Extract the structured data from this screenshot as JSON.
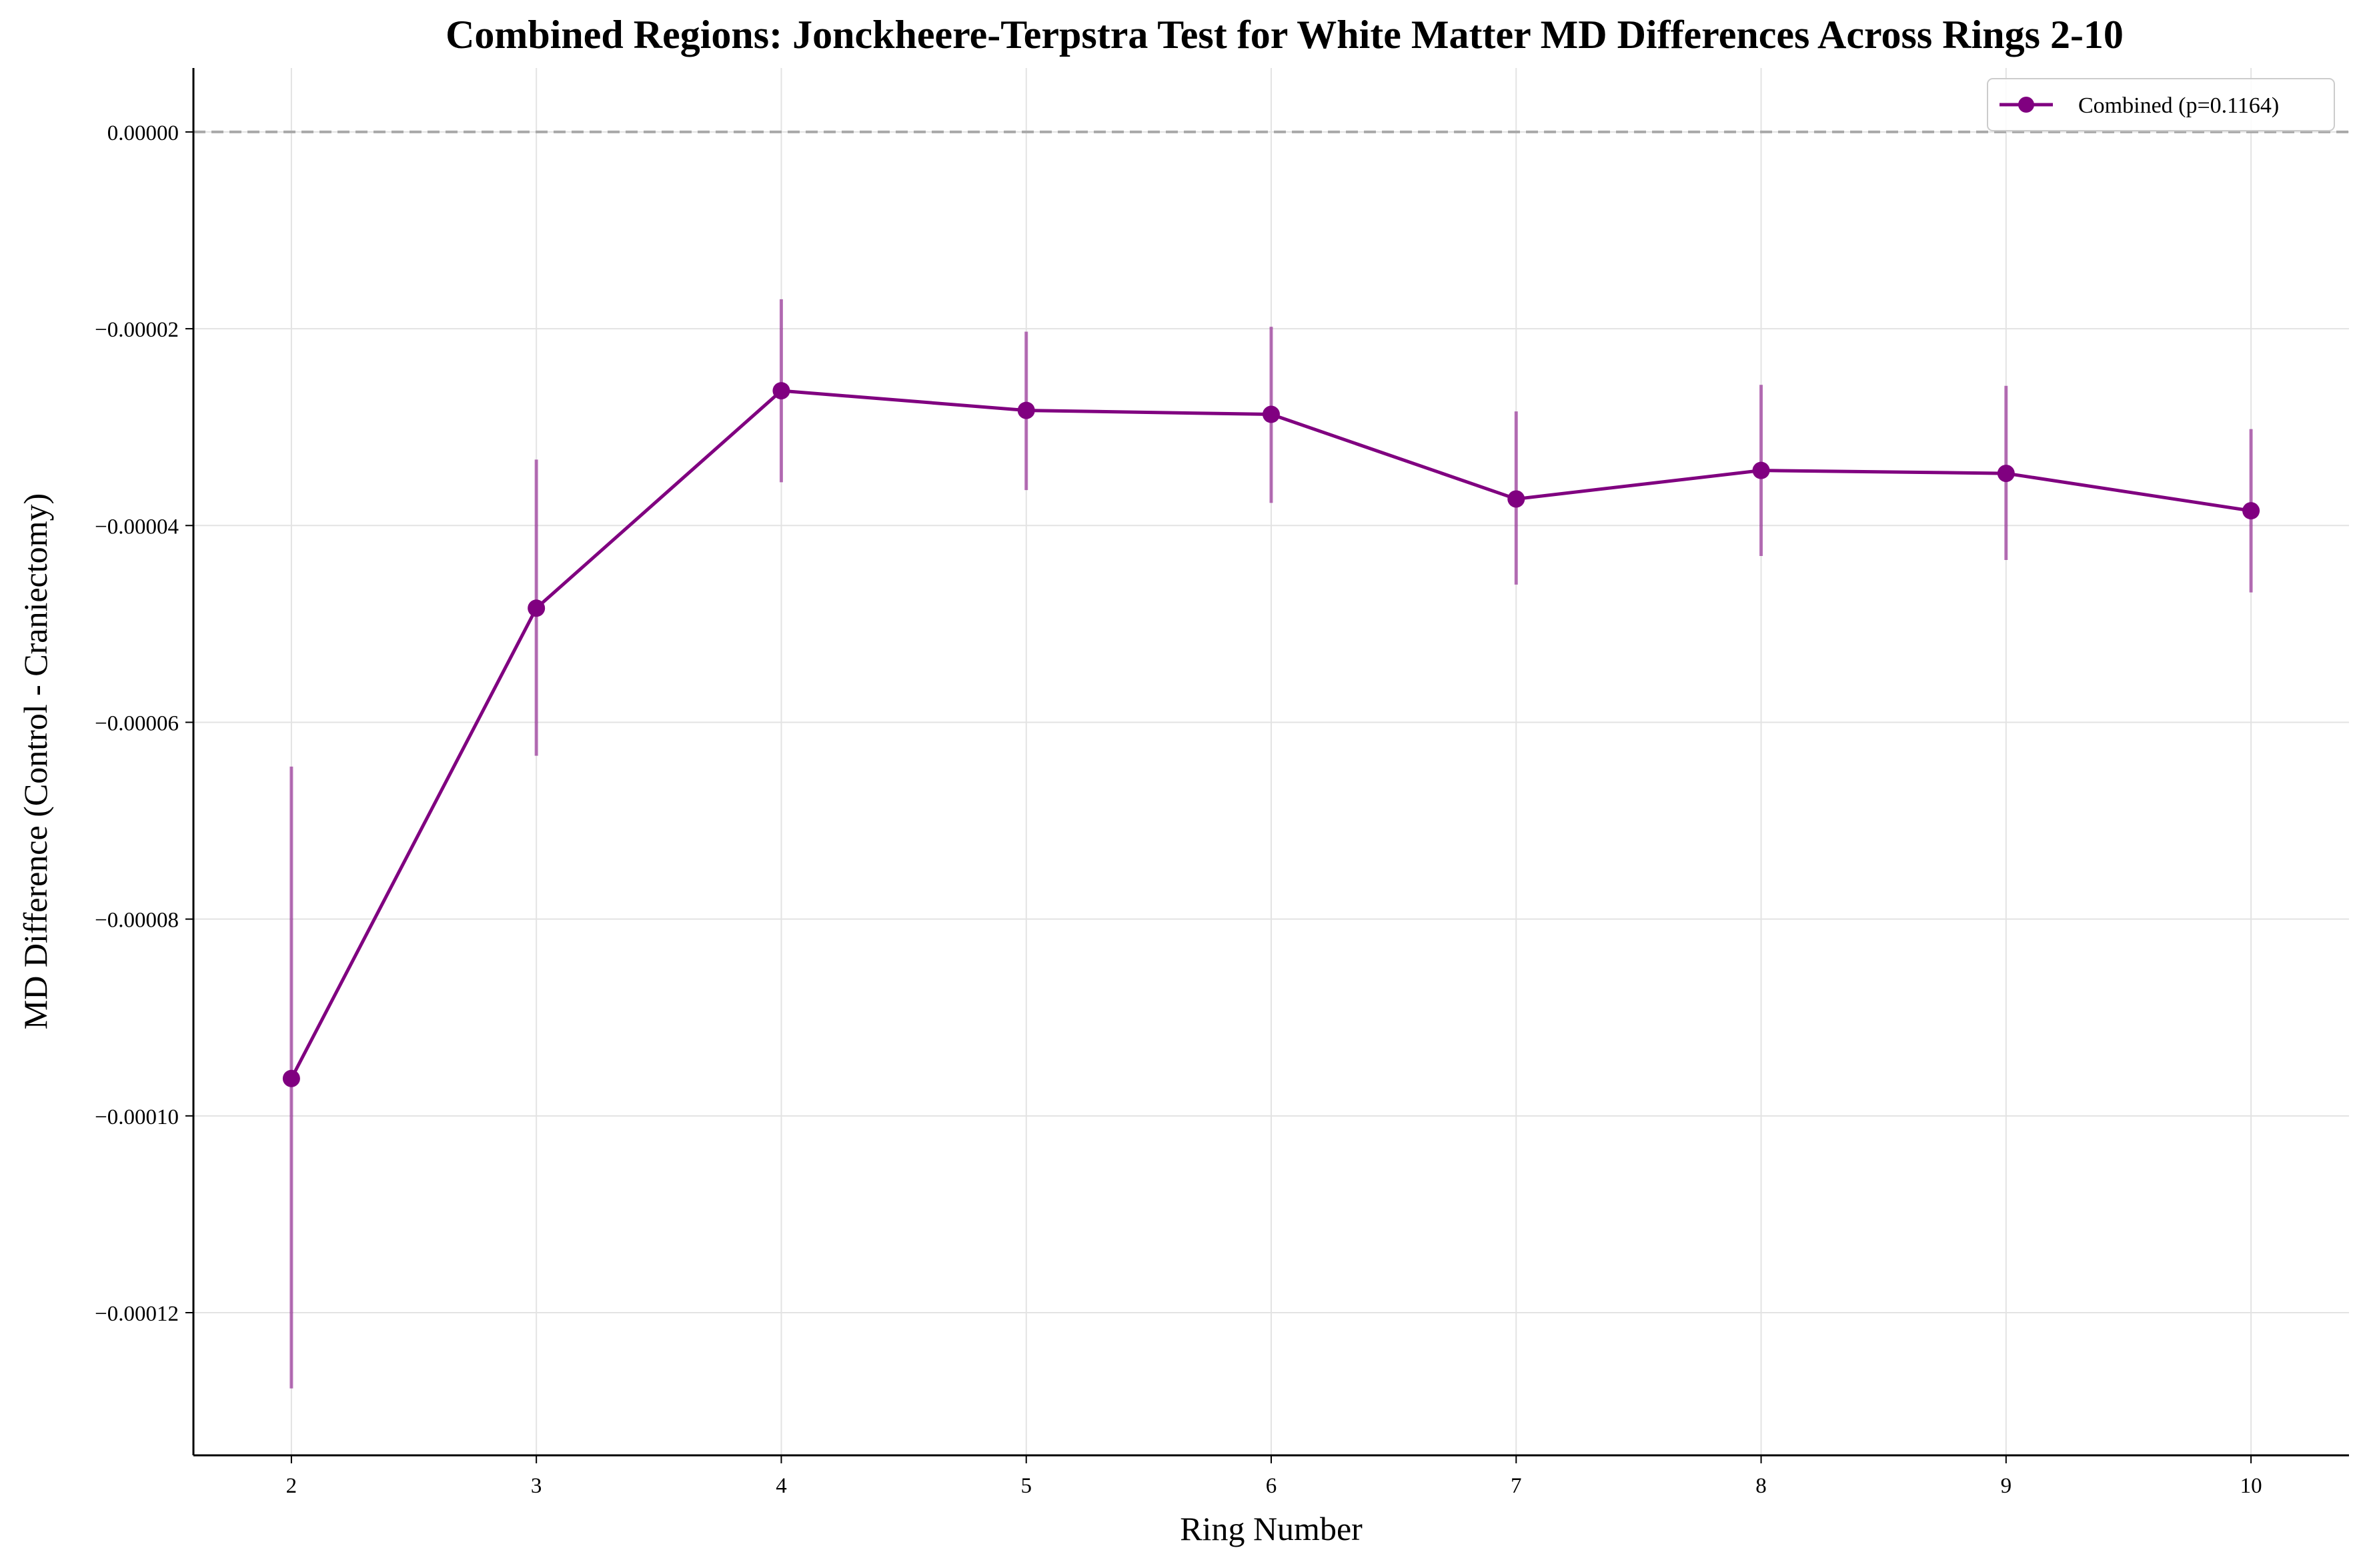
{
  "chart_data": {
    "type": "line",
    "title": "Combined Regions: Jonckheere-Terpstra Test for White Matter MD Differences Across Rings 2-10",
    "xlabel": "Ring Number",
    "ylabel": "MD Difference (Control - Craniectomy)",
    "x": [
      2,
      3,
      4,
      5,
      6,
      7,
      8,
      9,
      10
    ],
    "x_ticks": [
      "2",
      "3",
      "4",
      "5",
      "6",
      "7",
      "8",
      "9",
      "10"
    ],
    "xlim": [
      1.6,
      10.4
    ],
    "ylim": [
      -0.0001345,
      6.5e-06
    ],
    "y_ticks": [
      "0.00000",
      "−0.00002",
      "−0.00004",
      "−0.00006",
      "−0.00008",
      "−0.00010",
      "−0.00012"
    ],
    "y_tick_values": [
      0,
      -2e-05,
      -4e-05,
      -6e-05,
      -8e-05,
      -0.0001,
      -0.00012
    ],
    "reference_line": 0,
    "grid": true,
    "legend_position": "top-right",
    "series": [
      {
        "name": "Combined (p=0.1164)",
        "color": "#800080",
        "marker": "circle",
        "values": [
          -9.62e-05,
          -4.84e-05,
          -2.63e-05,
          -2.83e-05,
          -2.87e-05,
          -3.73e-05,
          -3.44e-05,
          -3.47e-05,
          -3.85e-05
        ],
        "error_low": [
          -0.0001277,
          -6.34e-05,
          -3.56e-05,
          -3.64e-05,
          -3.77e-05,
          -4.6e-05,
          -4.31e-05,
          -4.35e-05,
          -4.68e-05
        ],
        "error_high": [
          -6.45e-05,
          -3.33e-05,
          -1.7e-05,
          -2.03e-05,
          -1.98e-05,
          -2.84e-05,
          -2.57e-05,
          -2.58e-05,
          -3.02e-05
        ]
      }
    ]
  }
}
